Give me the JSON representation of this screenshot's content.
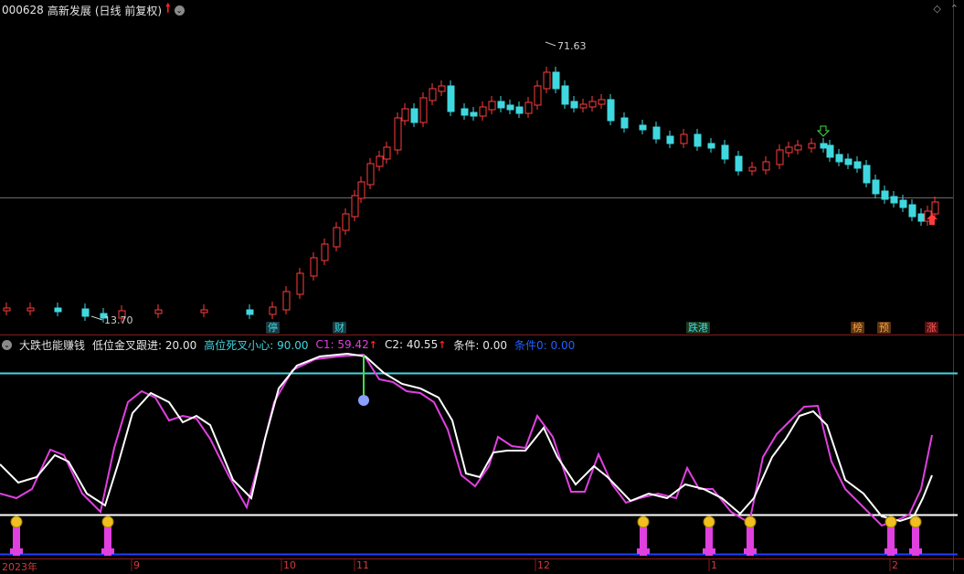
{
  "header": {
    "code": "000628",
    "name": "高新发展",
    "period": "(日线 前复权)"
  },
  "price_annotations": {
    "high": "71.63",
    "low": "13.70"
  },
  "event_tags": [
    {
      "text": "停",
      "color": "#3fd8e0"
    },
    {
      "text": "财",
      "color": "#3fd8e0"
    },
    {
      "text": "跌港",
      "color": "#3fd8e0"
    },
    {
      "text": "榜",
      "color": "#ff9e40"
    },
    {
      "text": "预",
      "color": "#ff9e40"
    },
    {
      "text": "涨",
      "color": "#ff5050"
    }
  ],
  "indicator": {
    "name": "大跌也能赚钱",
    "low_label": "低位金叉跟进:",
    "low_value": "20.00",
    "high_label": "高位死叉小心:",
    "high_value": "90.00",
    "c1_label": "C1:",
    "c1_value": "59.42",
    "c2_label": "C2:",
    "c2_value": "40.55",
    "cond_label": "条件:",
    "cond_value": "0.00",
    "cond0_label": "条件0:",
    "cond0_value": "0.00"
  },
  "time_axis": [
    "2023年",
    "9",
    "10",
    "11",
    "12",
    "1",
    "2"
  ],
  "colors": {
    "up": "#ff3c3c",
    "down": "#3fd8e0",
    "c1": "#e040e0",
    "c2": "#ffffff",
    "high_line": "#3fd8e0",
    "low_line": "#ffffff",
    "zero_line": "#2040ff"
  }
}
